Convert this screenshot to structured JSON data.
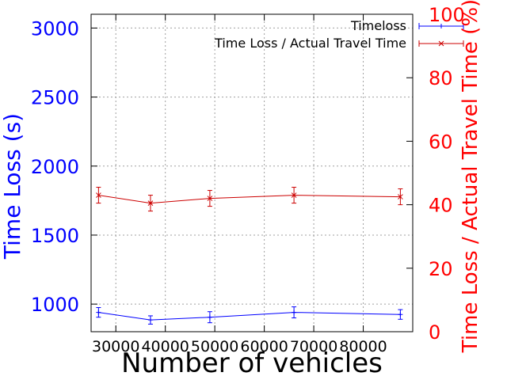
{
  "chart_data": {
    "type": "line",
    "xlabel": "Number of vehicles",
    "ylabel_left": "Time Loss (s)",
    "ylabel_right": "Time Loss / Actual Travel Time (%)",
    "xlim": [
      25000,
      90000
    ],
    "ylim_left": [
      800,
      3100
    ],
    "ylim_right": [
      0,
      100
    ],
    "x_ticks": [
      "30000",
      "40000",
      "50000",
      "60000",
      "70000",
      "80000"
    ],
    "x_tick_values": [
      30000,
      40000,
      50000,
      60000,
      70000,
      80000
    ],
    "y_left_ticks": [
      "1000",
      "1500",
      "2000",
      "2500",
      "3000"
    ],
    "y_left_tick_values": [
      1000,
      1500,
      2000,
      2500,
      3000
    ],
    "y_right_ticks": [
      "0",
      "20",
      "40",
      "60",
      "80",
      "100"
    ],
    "y_right_tick_values": [
      0,
      20,
      40,
      60,
      80,
      100
    ],
    "grid": true,
    "legend_position": "top-right",
    "series": [
      {
        "name": "Timeloss",
        "axis": "left",
        "color": "#0000ff",
        "marker": "plus",
        "x": [
          26500,
          37000,
          49000,
          66000,
          87500
        ],
        "y": [
          940,
          885,
          905,
          940,
          925
        ],
        "err": [
          35,
          30,
          40,
          40,
          35
        ]
      },
      {
        "name": "Time Loss / Actual Travel Time",
        "axis": "right",
        "color": "#cc0000",
        "marker": "cross",
        "x": [
          26500,
          37000,
          49000,
          66000,
          87500
        ],
        "y": [
          43,
          40.5,
          42,
          43,
          42.5
        ],
        "err": [
          2.5,
          2.5,
          2.5,
          2.5,
          2.5
        ]
      }
    ]
  }
}
